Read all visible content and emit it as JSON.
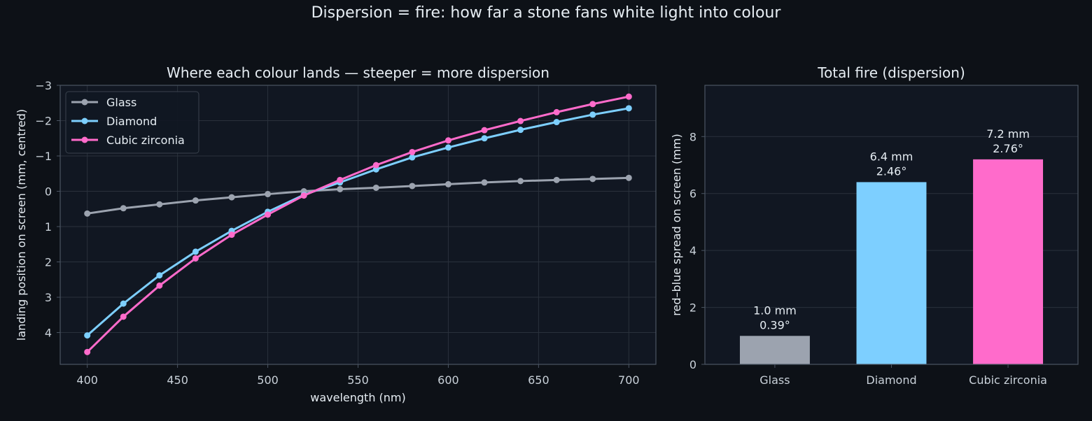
{
  "suptitle": "Dispersion = fire: how far a stone fans white light into colour",
  "chart_data": [
    {
      "type": "line",
      "title": "Where each colour lands — steeper = more dispersion",
      "xlabel": "wavelength (nm)",
      "ylabel": "landing position on screen (mm, centred)",
      "xlim": [
        385,
        715
      ],
      "ylim": [
        4.9,
        -3.0
      ],
      "y_inverted": true,
      "xticks": [
        "400",
        "450",
        "500",
        "550",
        "600",
        "650",
        "700"
      ],
      "yticks": [
        "−3",
        "−2",
        "−1",
        "0",
        "1",
        "2",
        "3",
        "4"
      ],
      "grid": true,
      "legend_position": "upper-left",
      "x": [
        400,
        420,
        440,
        460,
        480,
        500,
        520,
        540,
        560,
        580,
        600,
        620,
        640,
        660,
        680,
        700
      ],
      "series": [
        {
          "name": "Glass",
          "color": "#9ca3af",
          "values": [
            0.63,
            0.48,
            0.37,
            0.26,
            0.17,
            0.08,
            0.0,
            -0.06,
            -0.1,
            -0.15,
            -0.2,
            -0.25,
            -0.29,
            -0.32,
            -0.35,
            -0.38
          ]
        },
        {
          "name": "Diamond",
          "color": "#7dcfff",
          "values": [
            4.08,
            3.18,
            2.38,
            1.71,
            1.12,
            0.58,
            0.1,
            -0.25,
            -0.62,
            -0.96,
            -1.24,
            -1.5,
            -1.74,
            -1.96,
            -2.17,
            -2.35
          ]
        },
        {
          "name": "Cubic zirconia",
          "color": "#ff6bcb",
          "values": [
            4.55,
            3.55,
            2.67,
            1.9,
            1.23,
            0.66,
            0.12,
            -0.32,
            -0.74,
            -1.11,
            -1.44,
            -1.73,
            -1.99,
            -2.24,
            -2.47,
            -2.68
          ]
        }
      ]
    },
    {
      "type": "bar",
      "title": "Total fire (dispersion)",
      "xlabel": "",
      "ylabel": "red–blue spread on screen (mm)",
      "ylim": [
        0,
        9.8
      ],
      "yticks": [
        "0",
        "2",
        "4",
        "6",
        "8"
      ],
      "grid": true,
      "categories": [
        "Glass",
        "Diamond",
        "Cubic zirconia"
      ],
      "values": [
        1.0,
        6.4,
        7.2
      ],
      "colors": [
        "#9ca3af",
        "#7dcfff",
        "#ff6bcb"
      ],
      "labels_mm": [
        "1.0 mm",
        "6.4 mm",
        "7.2 mm"
      ],
      "labels_deg": [
        "0.39°",
        "2.46°",
        "2.76°"
      ]
    }
  ]
}
